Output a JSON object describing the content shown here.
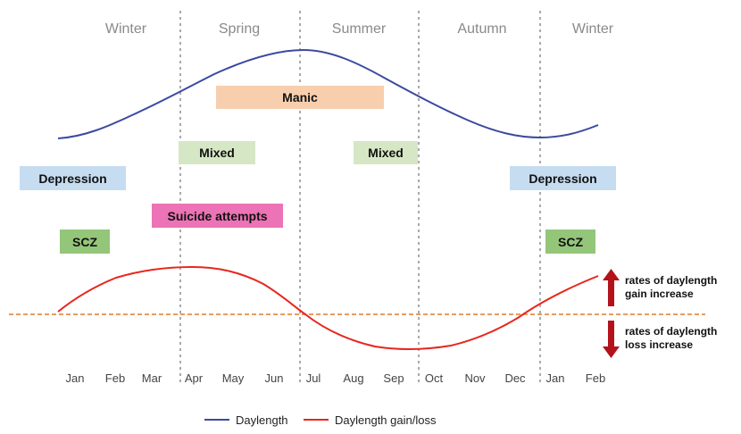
{
  "seasons": [
    "Winter",
    "Spring",
    "Summer",
    "Autumn",
    "Winter"
  ],
  "months": [
    "Jan",
    "Feb",
    "Mar",
    "Apr",
    "May",
    "Jun",
    "Jul",
    "Aug",
    "Sep",
    "Oct",
    "Nov",
    "Dec",
    "Jan",
    "Feb"
  ],
  "boxes": {
    "manic": "Manic",
    "mixed": "Mixed",
    "depression": "Depression",
    "suicide": "Suicide attempts",
    "scz": "SCZ"
  },
  "arrows": {
    "gain_label": "rates of daylength gain increase",
    "loss_label": "rates of daylength loss increase"
  },
  "legend": {
    "daylength": "Daylength",
    "gain_loss": "Daylength gain/loss"
  },
  "colors": {
    "daylength": "#3a4a9f",
    "gain_loss": "#e8261d",
    "baseline": "#e07b2a",
    "arrow": "#b3121b",
    "divider": "#aaaaaa",
    "manic": "#f8cfae",
    "mixed": "#d5e7c4",
    "depression": "#c6dcf0",
    "suicide": "#ec73b5",
    "scz": "#94c67a"
  },
  "icons": {
    "gain_arrow": "arrow-up-icon",
    "loss_arrow": "arrow-down-icon"
  }
}
